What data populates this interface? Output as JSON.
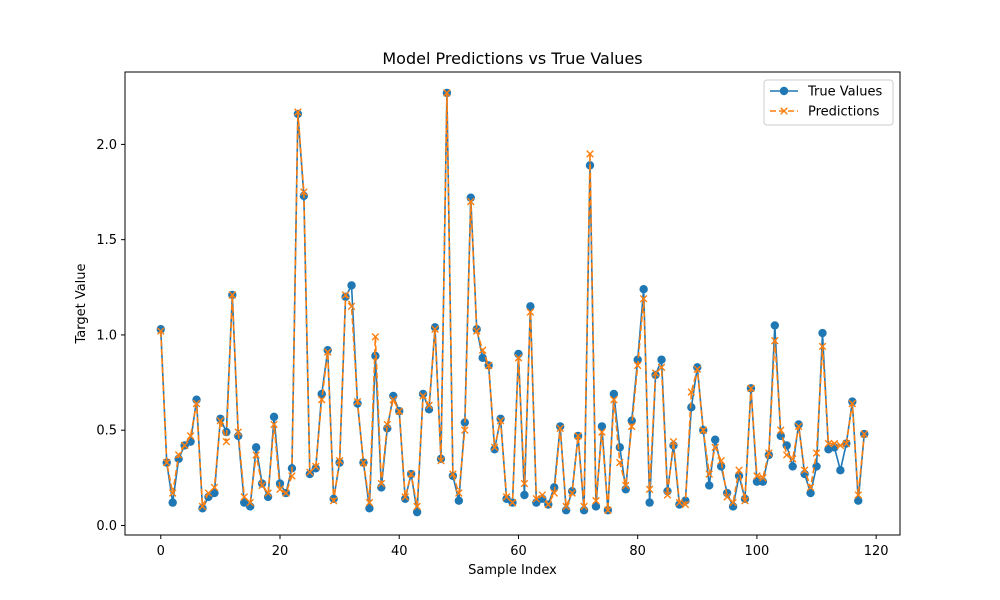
{
  "chart_data": {
    "type": "line",
    "title": "Model Predictions vs True Values",
    "xlabel": "Sample Index",
    "ylabel": "Target Value",
    "xlim": [
      -6,
      124
    ],
    "ylim": [
      -0.05,
      2.38
    ],
    "xticks": [
      0,
      20,
      40,
      60,
      80,
      100,
      120
    ],
    "xtick_labels": [
      "0",
      "20",
      "40",
      "60",
      "80",
      "100",
      "120"
    ],
    "yticks": [
      0.0,
      0.5,
      1.0,
      1.5,
      2.0
    ],
    "ytick_labels": [
      "0.0",
      "0.5",
      "1.0",
      "1.5",
      "2.0"
    ],
    "grid": false,
    "legend_placement": "top-right",
    "x": [
      0,
      1,
      2,
      3,
      4,
      5,
      6,
      7,
      8,
      9,
      10,
      11,
      12,
      13,
      14,
      15,
      16,
      17,
      18,
      19,
      20,
      21,
      22,
      23,
      24,
      25,
      26,
      27,
      28,
      29,
      30,
      31,
      32,
      33,
      34,
      35,
      36,
      37,
      38,
      39,
      40,
      41,
      42,
      43,
      44,
      45,
      46,
      47,
      48,
      49,
      50,
      51,
      52,
      53,
      54,
      55,
      56,
      57,
      58,
      59,
      60,
      61,
      62,
      63,
      64,
      65,
      66,
      67,
      68,
      69,
      70,
      71,
      72,
      73,
      74,
      75,
      76,
      77,
      78,
      79,
      80,
      81,
      82,
      83,
      84,
      85,
      86,
      87,
      88,
      89,
      90,
      91,
      92,
      93,
      94,
      95,
      96,
      97,
      98,
      99,
      100,
      101,
      102,
      103,
      104,
      105,
      106,
      107,
      108,
      109,
      110,
      111,
      112,
      113,
      114,
      115,
      116,
      117,
      118
    ],
    "series": [
      {
        "name": "True Values",
        "color": "#1f77b4",
        "linestyle": "solid",
        "marker": "circle",
        "values": [
          1.03,
          0.33,
          0.12,
          0.35,
          0.42,
          0.44,
          0.66,
          0.09,
          0.15,
          0.17,
          0.56,
          0.49,
          1.21,
          0.47,
          0.12,
          0.1,
          0.41,
          0.22,
          0.15,
          0.57,
          0.22,
          0.17,
          0.3,
          2.16,
          1.73,
          0.27,
          0.3,
          0.69,
          0.92,
          0.14,
          0.33,
          1.2,
          1.26,
          0.64,
          0.33,
          0.09,
          0.89,
          0.2,
          0.51,
          0.68,
          0.6,
          0.14,
          0.27,
          0.07,
          0.69,
          0.61,
          1.04,
          0.35,
          2.27,
          0.26,
          0.13,
          0.54,
          1.72,
          1.03,
          0.88,
          0.84,
          0.4,
          0.56,
          0.14,
          0.12,
          0.9,
          0.16,
          1.15,
          0.12,
          0.14,
          0.11,
          0.2,
          0.52,
          0.08,
          0.18,
          0.47,
          0.08,
          1.89,
          0.1,
          0.52,
          0.08,
          0.69,
          0.41,
          0.19,
          0.55,
          0.87,
          1.24,
          0.12,
          0.79,
          0.87,
          0.18,
          0.42,
          0.11,
          0.13,
          0.62,
          0.83,
          0.5,
          0.21,
          0.45,
          0.31,
          0.17,
          0.1,
          0.26,
          0.14,
          0.72,
          0.23,
          0.23,
          0.37,
          1.05,
          0.47,
          0.42,
          0.31,
          0.53,
          0.27,
          0.17,
          0.31,
          1.01,
          0.4,
          0.41,
          0.29,
          0.43,
          0.65,
          0.13,
          0.48
        ]
      },
      {
        "name": "Predictions",
        "color": "#ff7f0e",
        "linestyle": "dashed",
        "marker": "x",
        "values": [
          1.02,
          0.33,
          0.17,
          0.37,
          0.42,
          0.47,
          0.64,
          0.1,
          0.17,
          0.2,
          0.55,
          0.44,
          1.21,
          0.49,
          0.15,
          0.12,
          0.37,
          0.21,
          0.17,
          0.53,
          0.19,
          0.17,
          0.26,
          2.17,
          1.75,
          0.28,
          0.31,
          0.66,
          0.91,
          0.13,
          0.34,
          1.21,
          1.15,
          0.65,
          0.33,
          0.12,
          0.99,
          0.22,
          0.53,
          0.66,
          0.6,
          0.15,
          0.27,
          0.1,
          0.68,
          0.63,
          1.03,
          0.34,
          2.27,
          0.27,
          0.17,
          0.5,
          1.7,
          1.02,
          0.92,
          0.84,
          0.41,
          0.55,
          0.15,
          0.12,
          0.88,
          0.22,
          1.12,
          0.14,
          0.16,
          0.11,
          0.17,
          0.51,
          0.1,
          0.17,
          0.47,
          0.1,
          1.95,
          0.13,
          0.49,
          0.08,
          0.66,
          0.33,
          0.21,
          0.52,
          0.84,
          1.19,
          0.19,
          0.8,
          0.83,
          0.16,
          0.44,
          0.12,
          0.11,
          0.7,
          0.82,
          0.5,
          0.27,
          0.41,
          0.34,
          0.15,
          0.12,
          0.29,
          0.13,
          0.72,
          0.26,
          0.25,
          0.38,
          0.97,
          0.5,
          0.37,
          0.35,
          0.52,
          0.29,
          0.2,
          0.38,
          0.94,
          0.43,
          0.43,
          0.42,
          0.43,
          0.64,
          0.16,
          0.48
        ]
      }
    ]
  }
}
